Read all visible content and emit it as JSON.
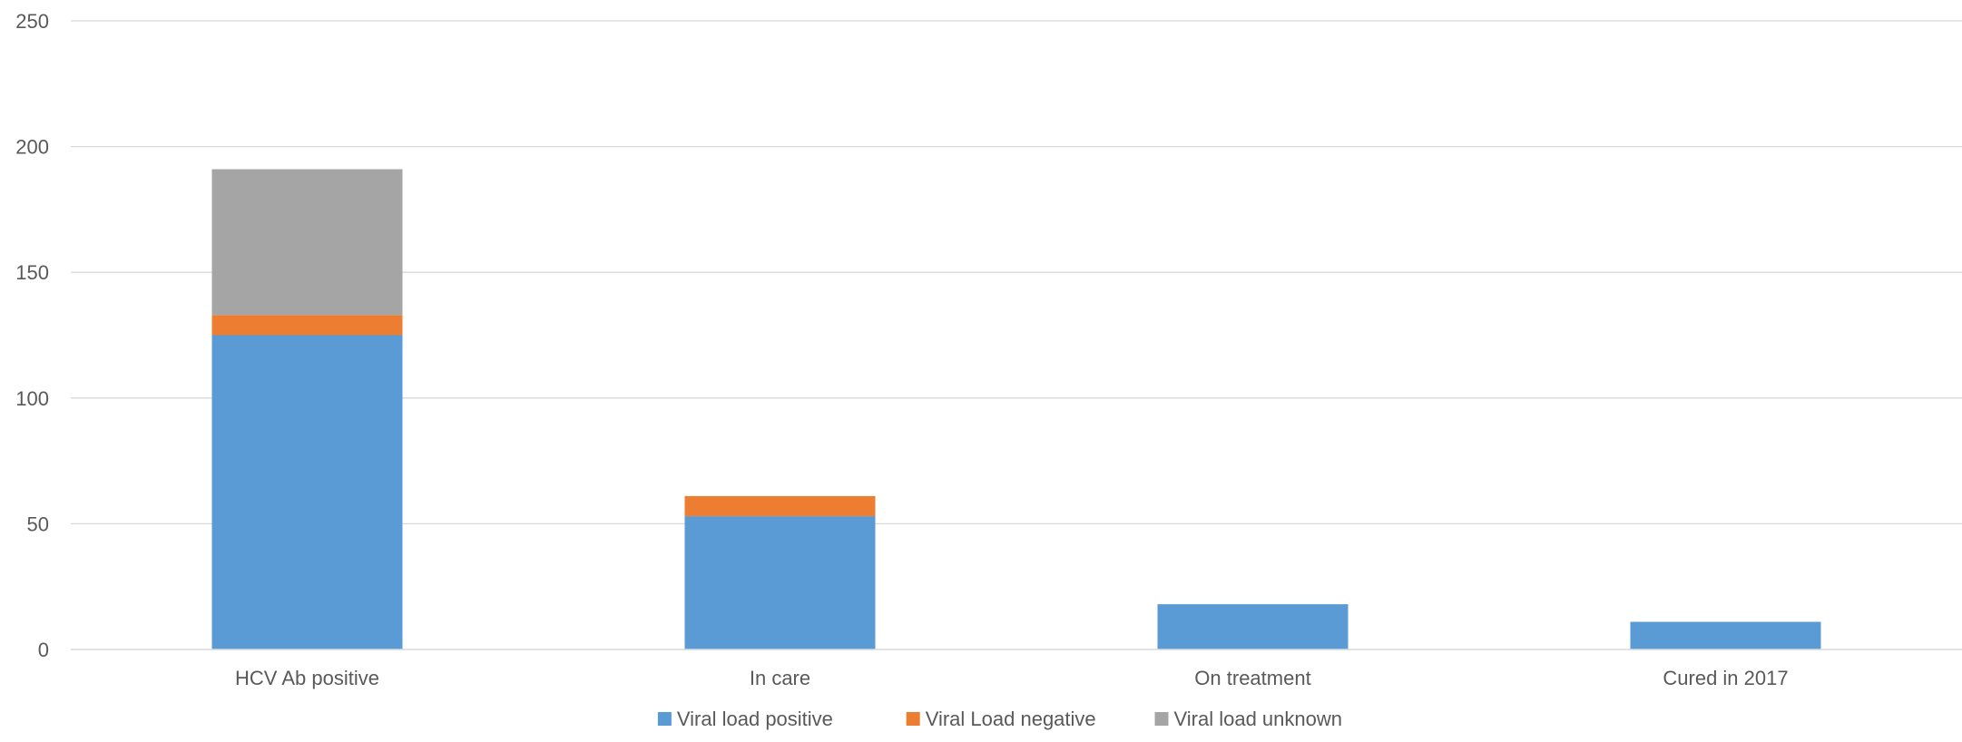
{
  "chart_data": {
    "type": "bar",
    "stacked": true,
    "categories": [
      "HCV Ab positive",
      "In care",
      "On treatment",
      "Cured in 2017"
    ],
    "series": [
      {
        "name": "Viral load positive",
        "color": "#5B9BD5",
        "values": [
          125,
          53,
          18,
          11
        ]
      },
      {
        "name": "Viral Load negative",
        "color": "#ED7D31",
        "values": [
          8,
          8,
          0,
          0
        ]
      },
      {
        "name": "Viral load unknown",
        "color": "#A5A5A5",
        "values": [
          58,
          0,
          0,
          0
        ]
      }
    ],
    "title": "",
    "xlabel": "",
    "ylabel": "",
    "ylim": [
      0,
      250
    ],
    "yticks": [
      "0",
      "50",
      "100",
      "150",
      "200",
      "250"
    ],
    "grid": true,
    "legend_position": "bottom"
  }
}
